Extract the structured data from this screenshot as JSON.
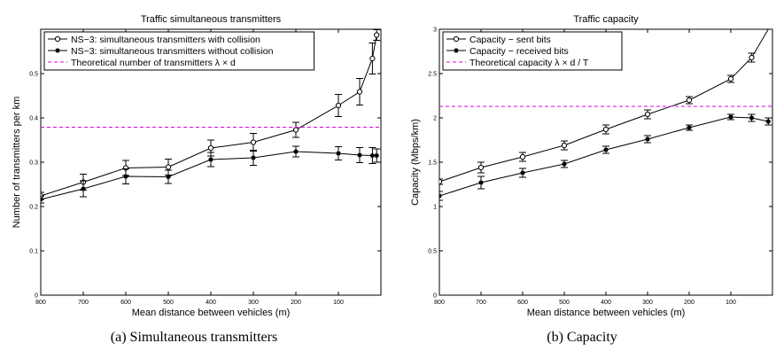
{
  "captions": {
    "a": "(a)  Simultaneous transmitters",
    "b": "(b)  Capacity"
  },
  "chart_data": [
    {
      "type": "line",
      "title": "Traffic simultaneous transmitters",
      "xlabel": "Mean distance between vehicles (m)",
      "ylabel": "Number of transmitters per km",
      "x_reversed": true,
      "xlim": [
        800,
        0
      ],
      "ylim": [
        0,
        0.6
      ],
      "x_ticks": [
        800,
        700,
        600,
        500,
        400,
        300,
        200,
        100
      ],
      "y_ticks": [
        0,
        0.1,
        0.2,
        0.3,
        0.4,
        0.5
      ],
      "y_tick_labels": [
        "0",
        "0.1",
        "0.2",
        "0.3",
        "0.4",
        "0.5"
      ],
      "legend_position": "top-left",
      "series": [
        {
          "name": "NS−3: simultaneous transmitters with collision",
          "marker": "circle",
          "color": "#000000",
          "x": [
            800,
            700,
            600,
            500,
            400,
            300,
            200,
            100,
            50,
            20,
            10
          ],
          "y": [
            0.224,
            0.255,
            0.287,
            0.289,
            0.332,
            0.345,
            0.373,
            0.428,
            0.459,
            0.534,
            0.587
          ],
          "err": [
            0.008,
            0.018,
            0.017,
            0.018,
            0.018,
            0.02,
            0.017,
            0.025,
            0.03,
            0.035,
            0.012
          ]
        },
        {
          "name": "NS−3: simultaneous transmitters without collision",
          "marker": "star",
          "color": "#000000",
          "x": [
            800,
            700,
            600,
            500,
            400,
            300,
            200,
            100,
            50,
            20,
            10
          ],
          "y": [
            0.216,
            0.24,
            0.268,
            0.267,
            0.306,
            0.31,
            0.324,
            0.32,
            0.316,
            0.315,
            0.315
          ],
          "err": [
            0.008,
            0.018,
            0.017,
            0.015,
            0.016,
            0.017,
            0.012,
            0.015,
            0.017,
            0.018,
            0.015
          ]
        },
        {
          "name": "Theoretical number of transmitters λ × d",
          "style": "dashed",
          "color": "#e000e0",
          "x": [
            800,
            0
          ],
          "y": [
            0.379,
            0.379
          ]
        }
      ]
    },
    {
      "type": "line",
      "title": "Traffic capacity",
      "xlabel": "Mean distance between vehicles (m)",
      "ylabel": "Capacity (Mbps/km)",
      "x_reversed": true,
      "xlim": [
        800,
        0
      ],
      "ylim": [
        0,
        3
      ],
      "x_ticks": [
        800,
        700,
        600,
        500,
        400,
        300,
        200,
        100
      ],
      "y_ticks": [
        0,
        0.5,
        1,
        1.5,
        2,
        2.5,
        3
      ],
      "y_tick_labels": [
        "0",
        "0.5",
        "1",
        "1.5",
        "2",
        "2.5",
        "3"
      ],
      "legend_position": "top-left",
      "series": [
        {
          "name": "Capacity − sent bits",
          "marker": "circle",
          "color": "#000000",
          "x": [
            800,
            700,
            600,
            500,
            400,
            300,
            200,
            100,
            50,
            10
          ],
          "y": [
            1.28,
            1.44,
            1.56,
            1.69,
            1.87,
            2.04,
            2.2,
            2.44,
            2.68,
            3.0
          ],
          "err": [
            0.03,
            0.06,
            0.05,
            0.05,
            0.05,
            0.05,
            0.04,
            0.04,
            0.05,
            0.0
          ],
          "marker_mask": [
            true,
            true,
            true,
            true,
            true,
            true,
            true,
            true,
            true,
            false
          ]
        },
        {
          "name": "Capacity − received bits",
          "marker": "star",
          "color": "#000000",
          "x": [
            800,
            700,
            600,
            500,
            400,
            300,
            200,
            100,
            50,
            10
          ],
          "y": [
            1.12,
            1.27,
            1.38,
            1.48,
            1.64,
            1.76,
            1.89,
            2.01,
            2.0,
            1.96
          ],
          "err": [
            0.05,
            0.07,
            0.05,
            0.04,
            0.04,
            0.04,
            0.03,
            0.03,
            0.04,
            0.04
          ]
        },
        {
          "name": "Theoretical capacity λ × d / T",
          "style": "dashed",
          "color": "#e000e0",
          "x": [
            800,
            0
          ],
          "y": [
            2.13,
            2.13
          ]
        }
      ]
    }
  ]
}
